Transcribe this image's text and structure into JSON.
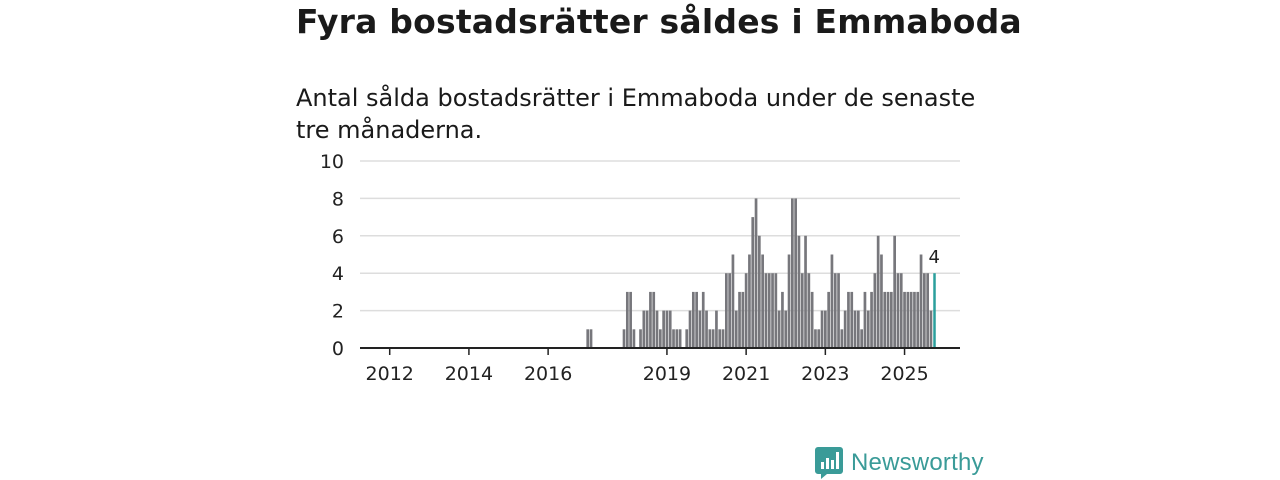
{
  "title": "Fyra bostadsrätter såldes i Emmaboda",
  "subtitle": "Antal sålda bostadsrätter i Emmaboda under de senaste tre månaderna.",
  "brand": "Newsworthy",
  "colors": {
    "bar": "#77777c",
    "highlight": "#2b9f9c",
    "grid": "#dddddd",
    "axis": "#222222",
    "brand": "#3a9b98"
  },
  "chart_data": {
    "type": "bar",
    "title": "Fyra bostadsrätter såldes i Emmaboda",
    "subtitle": "Antal sålda bostadsrätter i Emmaboda under de senaste tre månaderna.",
    "xlabel": "",
    "ylabel": "",
    "ylim": [
      0,
      10
    ],
    "yticks": [
      0,
      2,
      4,
      6,
      8,
      10
    ],
    "xlim": [
      2011.25,
      2026.4
    ],
    "xticks": [
      2012,
      2014,
      2016,
      2019,
      2021,
      2023,
      2025
    ],
    "grid": true,
    "bar_width_years": 0.068,
    "series": [
      {
        "name": "Sålda bostadsrätter",
        "start": 2017.0,
        "step": 0.0833333,
        "values": [
          1,
          1,
          0,
          0,
          0,
          0,
          0,
          0,
          0,
          0,
          0,
          1,
          3,
          3,
          1,
          0,
          1,
          2,
          2,
          3,
          3,
          2,
          1,
          2,
          2,
          2,
          1,
          1,
          1,
          0,
          1,
          2,
          3,
          3,
          2,
          3,
          2,
          1,
          1,
          2,
          1,
          1,
          4,
          4,
          5,
          2,
          3,
          3,
          4,
          5,
          7,
          8,
          6,
          5,
          4,
          4,
          4,
          4,
          2,
          3,
          2,
          5,
          8,
          8,
          6,
          4,
          6,
          4,
          3,
          1,
          1,
          2,
          2,
          3,
          5,
          4,
          4,
          1,
          2,
          3,
          3,
          2,
          2,
          1,
          3,
          2,
          3,
          4,
          6,
          5,
          3,
          3,
          3,
          6,
          4,
          4,
          3,
          3,
          3,
          3,
          3,
          5,
          4,
          4,
          2,
          4
        ]
      }
    ],
    "highlight": {
      "label": "4",
      "value": 4,
      "description": "senaste tre månaderna"
    }
  }
}
